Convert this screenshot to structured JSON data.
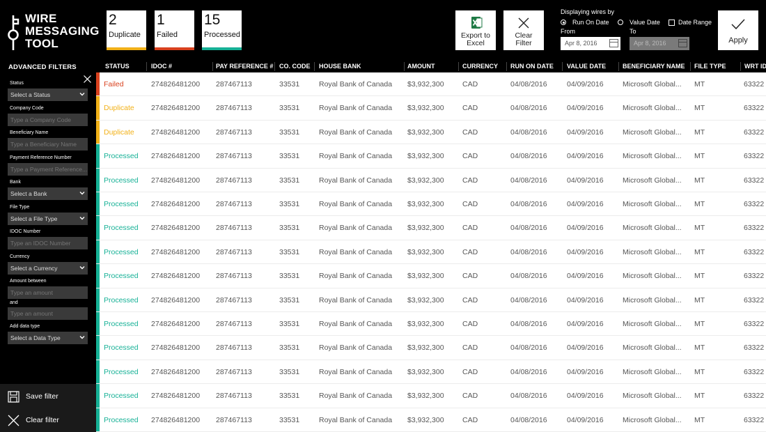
{
  "app": {
    "title_lines": [
      "WIRE",
      "MESSAGING",
      "TOOL"
    ]
  },
  "counts": [
    {
      "value": "2",
      "label": "Duplicate",
      "color": "#f2b118"
    },
    {
      "value": "1",
      "label": "Failed",
      "color": "#d9411e"
    },
    {
      "value": "15",
      "label": "Processed",
      "color": "#16b196"
    }
  ],
  "toolbar": {
    "export_label": "Export to\nExcel",
    "clear_label": "Clear\nFilter",
    "apply_label": "Apply"
  },
  "display": {
    "title": "Displaying wires by",
    "options": [
      {
        "label": "Run On Date",
        "selected": true
      },
      {
        "label": "Value Date",
        "selected": false
      }
    ],
    "date_range_label": "Date Range",
    "from_label": "From",
    "to_label": "To",
    "from_value": "Apr 8, 2016",
    "to_value": "Apr 8, 2016"
  },
  "sidebar": {
    "title": "ADVANCED FILTERS",
    "filters": [
      {
        "label": "Status",
        "placeholder": "Select a Status",
        "type": "select"
      },
      {
        "label": "Company Code",
        "placeholder": "Type a Company Code",
        "type": "input"
      },
      {
        "label": "Beneficiary Name",
        "placeholder": "Type a Beneficiary Name",
        "type": "input"
      },
      {
        "label": "Payment Reference Number",
        "placeholder": "Type a Payment Reference...",
        "type": "input"
      },
      {
        "label": "Bank",
        "placeholder": "Select a Bank",
        "type": "select"
      },
      {
        "label": "File Type",
        "placeholder": "Select a File Type",
        "type": "select"
      },
      {
        "label": "IDOC Number",
        "placeholder": "Type an IDOC Number",
        "type": "input"
      },
      {
        "label": "Currency",
        "placeholder": "Select a Currency",
        "type": "select"
      },
      {
        "label": "Amount between",
        "placeholder": "Type an amount",
        "type": "input"
      },
      {
        "label": "and",
        "placeholder": "Type an amount",
        "type": "input"
      },
      {
        "label": "Add data type",
        "placeholder": "Select a Data Type",
        "type": "select"
      }
    ],
    "save_label": "Save filter",
    "clear_label": "Clear filter"
  },
  "table": {
    "columns": [
      "STATUS",
      "IDOC #",
      "PAY REFERENCE #",
      "CO. CODE",
      "HOUSE BANK",
      "AMOUNT",
      "CURRENCY",
      "RUN ON DATE",
      "VALUE DATE",
      "BENEFICIARY NAME",
      "FILE TYPE",
      "WRT ID"
    ],
    "status_colors": {
      "Failed": "#d9411e",
      "Duplicate": "#f2b118",
      "Processed": "#16b196"
    },
    "rows": [
      [
        "Failed",
        "274826481200",
        "287467113",
        "33531",
        "Royal Bank of Canada",
        "$3,932,300",
        "CAD",
        "04/08/2016",
        "04/09/2016",
        "Microsoft Global...",
        "MT",
        "63322"
      ],
      [
        "Duplicate",
        "274826481200",
        "287467113",
        "33531",
        "Royal Bank of Canada",
        "$3,932,300",
        "CAD",
        "04/08/2016",
        "04/09/2016",
        "Microsoft Global...",
        "MT",
        "63322"
      ],
      [
        "Duplicate",
        "274826481200",
        "287467113",
        "33531",
        "Royal Bank of Canada",
        "$3,932,300",
        "CAD",
        "04/08/2016",
        "04/09/2016",
        "Microsoft Global...",
        "MT",
        "63322"
      ],
      [
        "Processed",
        "274826481200",
        "287467113",
        "33531",
        "Royal Bank of Canada",
        "$3,932,300",
        "CAD",
        "04/08/2016",
        "04/09/2016",
        "Microsoft Global...",
        "MT",
        "63322"
      ],
      [
        "Processed",
        "274826481200",
        "287467113",
        "33531",
        "Royal Bank of Canada",
        "$3,932,300",
        "CAD",
        "04/08/2016",
        "04/09/2016",
        "Microsoft Global...",
        "MT",
        "63322"
      ],
      [
        "Processed",
        "274826481200",
        "287467113",
        "33531",
        "Royal Bank of Canada",
        "$3,932,300",
        "CAD",
        "04/08/2016",
        "04/09/2016",
        "Microsoft Global...",
        "MT",
        "63322"
      ],
      [
        "Processed",
        "274826481200",
        "287467113",
        "33531",
        "Royal Bank of Canada",
        "$3,932,300",
        "CAD",
        "04/08/2016",
        "04/09/2016",
        "Microsoft Global...",
        "MT",
        "63322"
      ],
      [
        "Processed",
        "274826481200",
        "287467113",
        "33531",
        "Royal Bank of Canada",
        "$3,932,300",
        "CAD",
        "04/08/2016",
        "04/09/2016",
        "Microsoft Global...",
        "MT",
        "63322"
      ],
      [
        "Processed",
        "274826481200",
        "287467113",
        "33531",
        "Royal Bank of Canada",
        "$3,932,300",
        "CAD",
        "04/08/2016",
        "04/09/2016",
        "Microsoft Global...",
        "MT",
        "63322"
      ],
      [
        "Processed",
        "274826481200",
        "287467113",
        "33531",
        "Royal Bank of Canada",
        "$3,932,300",
        "CAD",
        "04/08/2016",
        "04/09/2016",
        "Microsoft Global...",
        "MT",
        "63322"
      ],
      [
        "Processed",
        "274826481200",
        "287467113",
        "33531",
        "Royal Bank of Canada",
        "$3,932,300",
        "CAD",
        "04/08/2016",
        "04/09/2016",
        "Microsoft Global...",
        "MT",
        "63322"
      ],
      [
        "Processed",
        "274826481200",
        "287467113",
        "33531",
        "Royal Bank of Canada",
        "$3,932,300",
        "CAD",
        "04/08/2016",
        "04/09/2016",
        "Microsoft Global...",
        "MT",
        "63322"
      ],
      [
        "Processed",
        "274826481200",
        "287467113",
        "33531",
        "Royal Bank of Canada",
        "$3,932,300",
        "CAD",
        "04/08/2016",
        "04/09/2016",
        "Microsoft Global...",
        "MT",
        "63322"
      ],
      [
        "Processed",
        "274826481200",
        "287467113",
        "33531",
        "Royal Bank of Canada",
        "$3,932,300",
        "CAD",
        "04/08/2016",
        "04/09/2016",
        "Microsoft Global...",
        "MT",
        "63322"
      ],
      [
        "Processed",
        "274826481200",
        "287467113",
        "33531",
        "Royal Bank of Canada",
        "$3,932,300",
        "CAD",
        "04/08/2016",
        "04/09/2016",
        "Microsoft Global...",
        "MT",
        "63322"
      ]
    ]
  }
}
